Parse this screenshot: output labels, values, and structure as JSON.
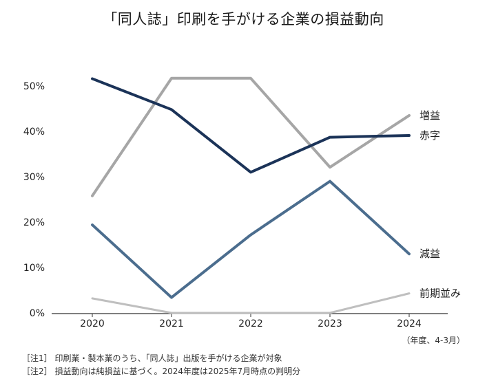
{
  "chart_data": {
    "type": "line",
    "title": "「同人誌」印刷を手がける企業の損益動向",
    "categories": [
      "2020",
      "2021",
      "2022",
      "2023",
      "2024"
    ],
    "series": [
      {
        "name": "増益",
        "values": [
          25.8,
          51.7,
          51.7,
          32.1,
          43.5
        ],
        "color": "#a6a6a6",
        "stroke_width": 4
      },
      {
        "name": "赤字",
        "values": [
          51.6,
          44.8,
          31.0,
          38.7,
          39.1
        ],
        "color": "#1b3358",
        "stroke_width": 4
      },
      {
        "name": "減益",
        "values": [
          19.4,
          3.4,
          17.2,
          29.0,
          13.0
        ],
        "color": "#4b6d8e",
        "stroke_width": 4
      },
      {
        "name": "前期並み",
        "values": [
          3.2,
          0,
          0,
          0,
          4.3
        ],
        "color": "#bfbfbf",
        "stroke_width": 3
      }
    ],
    "yticks": [
      0,
      10,
      20,
      30,
      40,
      50
    ],
    "ytick_labels": [
      "0%",
      "10%",
      "20%",
      "30%",
      "40%",
      "50%"
    ],
    "ylim": [
      0,
      50
    ],
    "xlabel": "",
    "ylabel": "",
    "unit_note": "（年度、4-3月）",
    "grid": false,
    "legend": "direct-labels-right"
  },
  "notes": [
    "［注1］ 印刷業・製本業のうち、「同人誌」出版を手がける企業が対象",
    "［注2］ 損益動向は純損益に基づく。2024年度は2025年7月時点の判明分"
  ]
}
